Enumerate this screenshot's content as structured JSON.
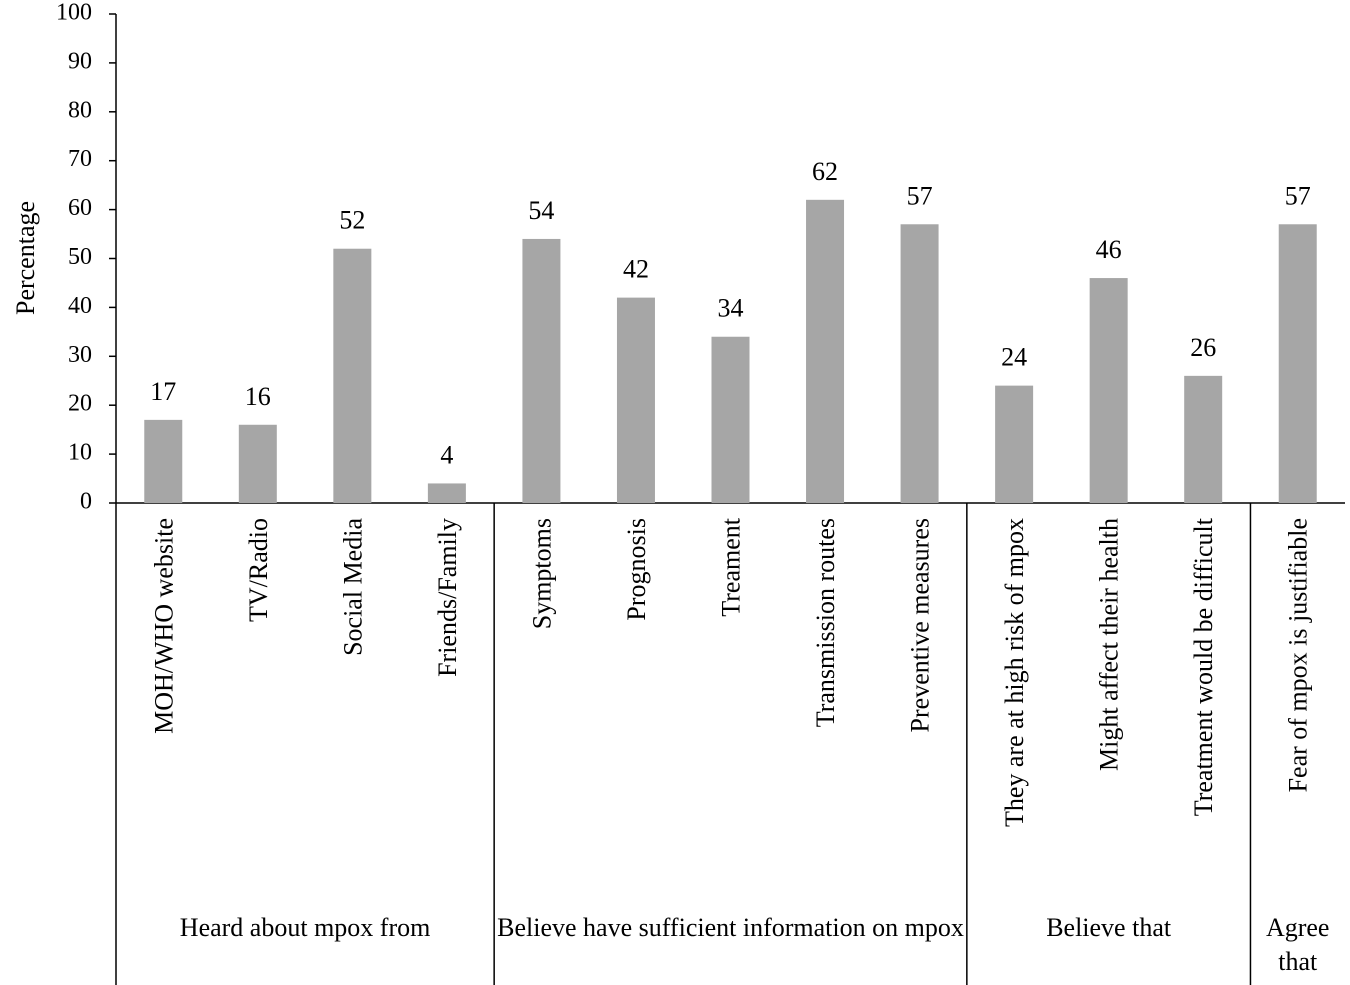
{
  "chart_data": {
    "type": "bar",
    "y_label": "Percentage",
    "ylim": [
      0,
      100
    ],
    "yticks": [
      0,
      10,
      20,
      30,
      40,
      50,
      60,
      70,
      80,
      90,
      100
    ],
    "color": "#a6a6a6",
    "groups": [
      {
        "label": "Heard about mpox from",
        "categories": [
          "MOH/WHO website",
          "TV/Radio",
          "Social Media",
          "Friends/Family"
        ],
        "values": [
          17,
          16,
          52,
          4
        ]
      },
      {
        "label": "Believe have sufficient information on mpox",
        "categories": [
          "Symptoms",
          "Prognosis",
          "Treament",
          "Transmission routes",
          "Preventive measures"
        ],
        "values": [
          54,
          42,
          34,
          62,
          57
        ]
      },
      {
        "label": "Believe that",
        "categories": [
          "They are at high risk of mpox",
          "Might affect their health",
          "Treatment would be difficult"
        ],
        "values": [
          24,
          46,
          26
        ]
      },
      {
        "label": "Agree that",
        "categories": [
          "Fear of mpox is justifiable"
        ],
        "values": [
          57
        ]
      }
    ]
  }
}
